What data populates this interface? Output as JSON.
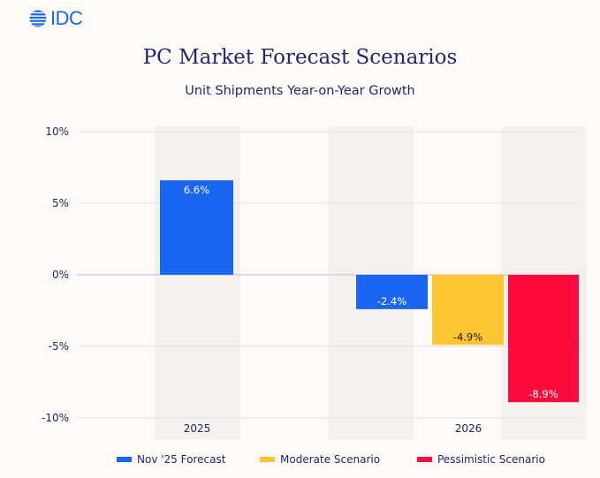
{
  "logo": {
    "text": "IDC",
    "icon": "globe-icon",
    "color": "#1a66e8"
  },
  "chart_data": {
    "type": "bar",
    "title": "PC Market Forecast Scenarios",
    "subtitle": "Unit Shipments Year-on-Year Growth",
    "xlabel": "",
    "ylabel": "",
    "categories": [
      "2025",
      "2026"
    ],
    "ylim": [
      -10,
      10
    ],
    "yticks": [
      10,
      5,
      0,
      -5,
      -10
    ],
    "ytick_labels": [
      "10%",
      "5%",
      "0%",
      "-5%",
      "-10%"
    ],
    "grid": true,
    "legend_position": "bottom",
    "series": [
      {
        "name": "Nov '25 Forecast",
        "color": "#1a66f0",
        "values": [
          6.6,
          -2.4
        ],
        "labels": [
          "6.6%",
          "-2.4%"
        ],
        "label_color": "#ffffff"
      },
      {
        "name": "Moderate Scenario",
        "color": "#ffc533",
        "values": [
          null,
          -4.9
        ],
        "labels": [
          null,
          "-4.9%"
        ],
        "label_color": "#1a1a1a"
      },
      {
        "name": "Pessimistic Scenario",
        "color": "#ff0a3c",
        "values": [
          null,
          -8.9
        ],
        "labels": [
          null,
          "-8.9%"
        ],
        "label_color": "#ffffff"
      }
    ]
  }
}
